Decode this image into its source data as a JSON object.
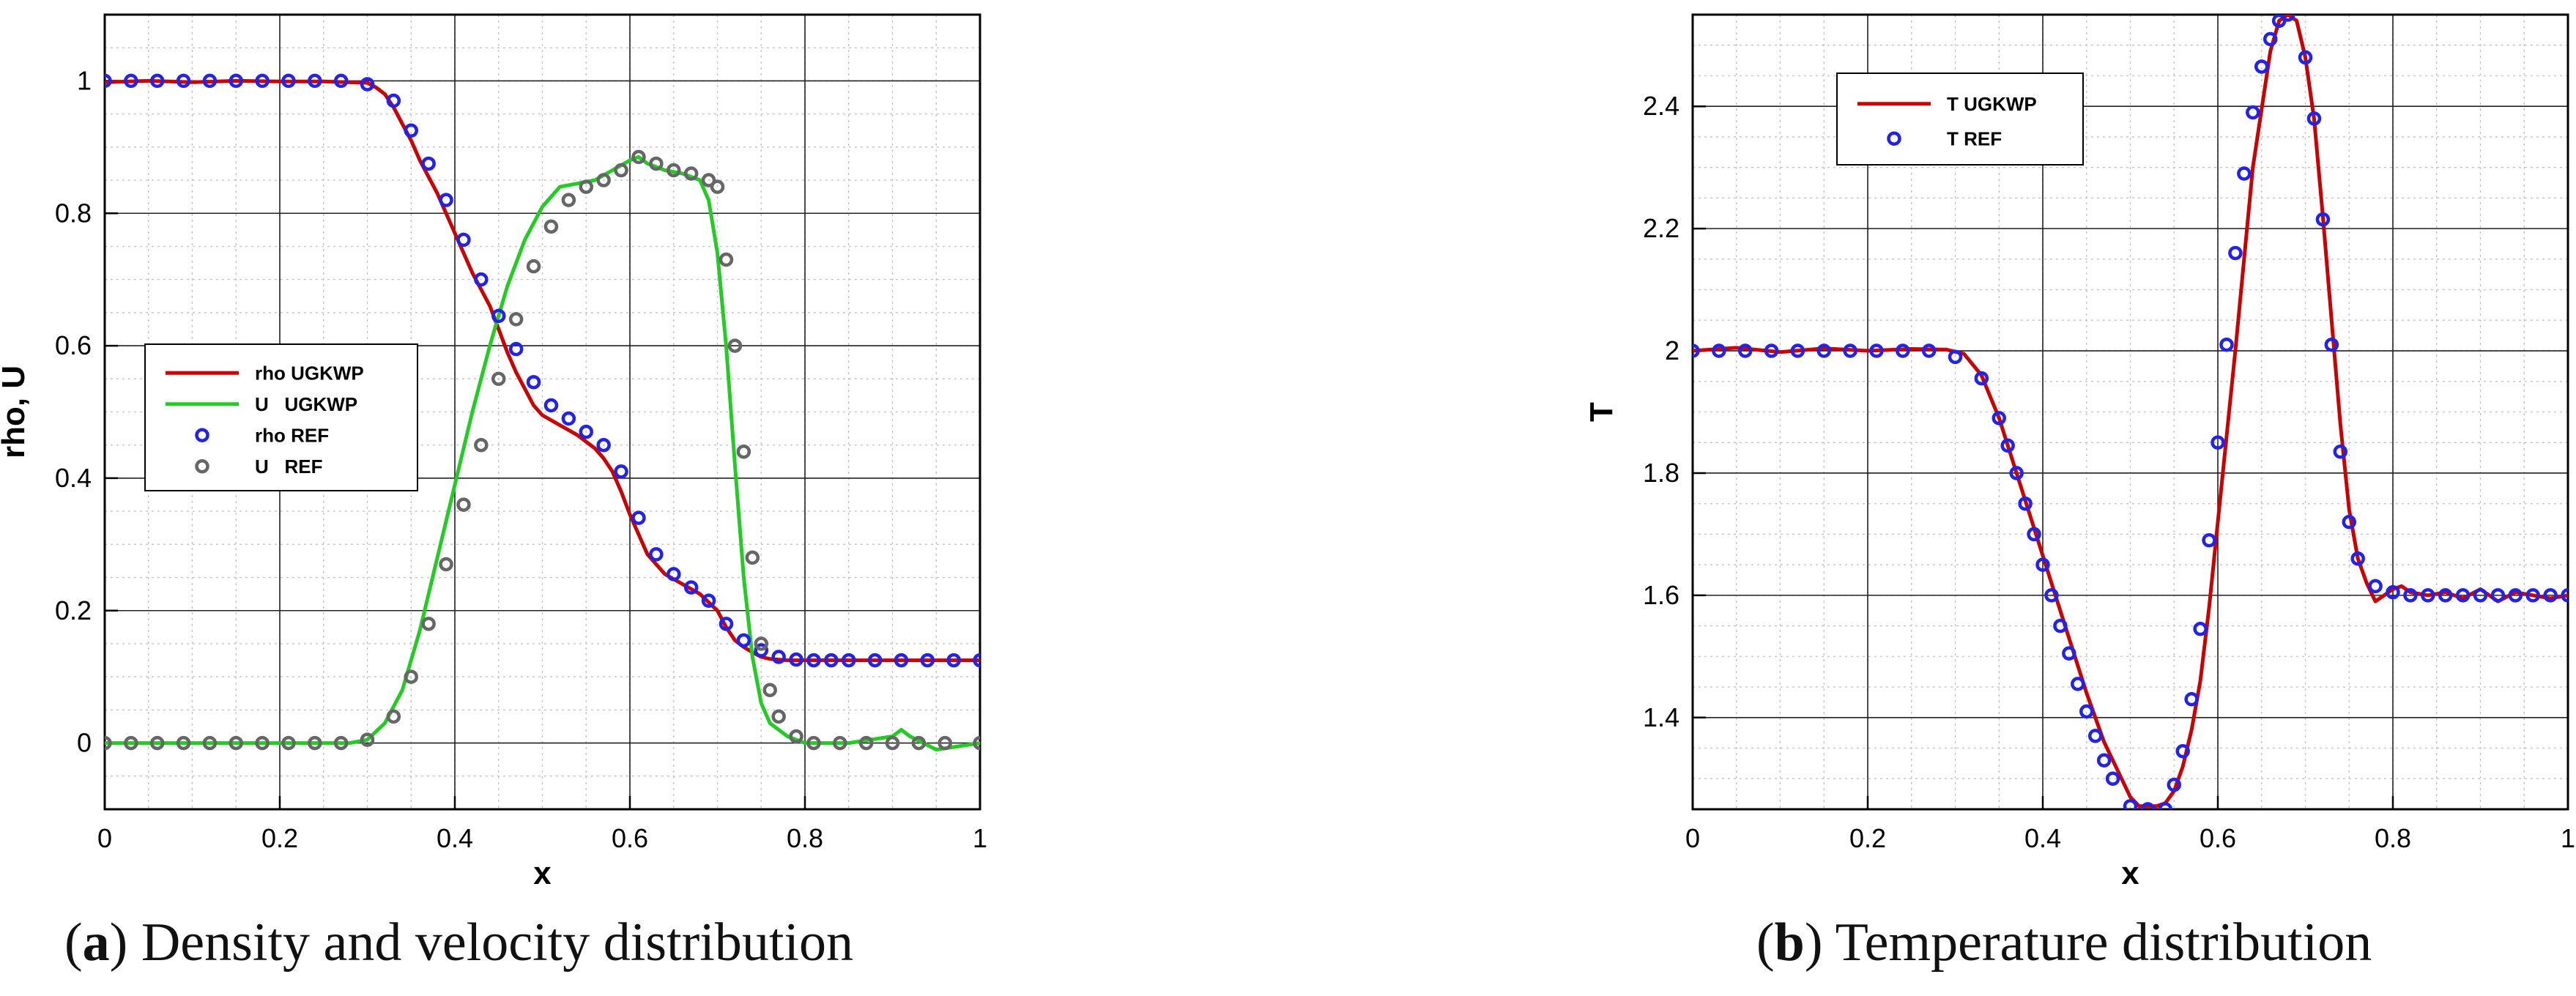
{
  "colors": {
    "rho_ugkwp": "#cc0000",
    "u_ugkwp": "#22cc22",
    "rho_ref": "#2222ee",
    "u_ref": "#666666",
    "t_ugkwp": "#cc0000",
    "t_ref": "#2222ee"
  },
  "captions": {
    "a_letter": "a",
    "a_text": " Density and velocity distribution",
    "b_letter": "b",
    "b_text": " Temperature distribution"
  },
  "chart_data": [
    {
      "type": "line",
      "id": "a",
      "xlabel": "x",
      "ylabel": "rho, U",
      "xlim": [
        0,
        1
      ],
      "ylim": [
        -0.1,
        1.1
      ],
      "xticks": [
        0,
        0.2,
        0.4,
        0.6,
        0.8,
        1
      ],
      "xtick_labels": [
        "0",
        "0.2",
        "0.4",
        "0.6",
        "0.8",
        "1"
      ],
      "yticks": [
        0,
        0.2,
        0.4,
        0.6,
        0.8,
        1
      ],
      "ytick_labels": [
        "0",
        "0.2",
        "0.4",
        "0.6",
        "0.8",
        "1"
      ],
      "grid": true,
      "legend_position": "center-left",
      "series": [
        {
          "name": "rho UGKWP",
          "style": "line",
          "color_key": "rho_ugkwp",
          "x": [
            0,
            0.05,
            0.1,
            0.15,
            0.2,
            0.25,
            0.3,
            0.31,
            0.32,
            0.33,
            0.34,
            0.35,
            0.36,
            0.38,
            0.4,
            0.42,
            0.44,
            0.45,
            0.46,
            0.47,
            0.48,
            0.49,
            0.5,
            0.52,
            0.54,
            0.56,
            0.57,
            0.58,
            0.59,
            0.6,
            0.62,
            0.64,
            0.66,
            0.68,
            0.7,
            0.71,
            0.72,
            0.73,
            0.74,
            0.75,
            0.76,
            0.78,
            0.8,
            0.9,
            1.0
          ],
          "y": [
            0.998,
            1.0,
            0.998,
            1.0,
            0.999,
            0.999,
            0.997,
            0.99,
            0.98,
            0.96,
            0.935,
            0.91,
            0.88,
            0.83,
            0.77,
            0.71,
            0.66,
            0.625,
            0.59,
            0.56,
            0.535,
            0.51,
            0.495,
            0.48,
            0.465,
            0.445,
            0.43,
            0.41,
            0.38,
            0.345,
            0.285,
            0.255,
            0.24,
            0.225,
            0.2,
            0.175,
            0.155,
            0.145,
            0.137,
            0.13,
            0.127,
            0.125,
            0.125,
            0.125,
            0.125
          ]
        },
        {
          "name": "U   UGKWP",
          "style": "line",
          "color_key": "u_ugkwp",
          "x": [
            0,
            0.1,
            0.2,
            0.28,
            0.3,
            0.32,
            0.34,
            0.36,
            0.38,
            0.4,
            0.42,
            0.44,
            0.46,
            0.48,
            0.5,
            0.52,
            0.54,
            0.56,
            0.58,
            0.6,
            0.61,
            0.62,
            0.64,
            0.66,
            0.68,
            0.69,
            0.7,
            0.71,
            0.72,
            0.73,
            0.74,
            0.75,
            0.76,
            0.78,
            0.8,
            0.85,
            0.9,
            0.91,
            0.92,
            0.95,
            1.0
          ],
          "y": [
            0.0,
            0.0,
            0.0,
            0.0,
            0.005,
            0.03,
            0.08,
            0.17,
            0.28,
            0.39,
            0.5,
            0.6,
            0.69,
            0.76,
            0.81,
            0.84,
            0.845,
            0.85,
            0.865,
            0.88,
            0.885,
            0.875,
            0.865,
            0.86,
            0.85,
            0.82,
            0.74,
            0.6,
            0.42,
            0.25,
            0.13,
            0.06,
            0.03,
            0.01,
            0.0,
            0.0,
            0.01,
            0.02,
            0.01,
            -0.01,
            0.0
          ]
        },
        {
          "name": "rho REF",
          "style": "marker",
          "color_key": "rho_ref",
          "x": [
            0,
            0.03,
            0.06,
            0.09,
            0.12,
            0.15,
            0.18,
            0.21,
            0.24,
            0.27,
            0.3,
            0.33,
            0.35,
            0.37,
            0.39,
            0.41,
            0.43,
            0.45,
            0.47,
            0.49,
            0.51,
            0.53,
            0.55,
            0.57,
            0.59,
            0.61,
            0.63,
            0.65,
            0.67,
            0.69,
            0.71,
            0.73,
            0.75,
            0.77,
            0.79,
            0.81,
            0.83,
            0.85,
            0.88,
            0.91,
            0.94,
            0.97,
            1.0
          ],
          "y": [
            1.0,
            1.0,
            1.0,
            1.0,
            1.0,
            1.0,
            1.0,
            1.0,
            1.0,
            1.0,
            0.995,
            0.97,
            0.925,
            0.875,
            0.82,
            0.76,
            0.7,
            0.645,
            0.595,
            0.545,
            0.51,
            0.49,
            0.47,
            0.45,
            0.41,
            0.34,
            0.285,
            0.255,
            0.235,
            0.215,
            0.18,
            0.155,
            0.14,
            0.13,
            0.126,
            0.125,
            0.125,
            0.125,
            0.125,
            0.125,
            0.125,
            0.125,
            0.125
          ]
        },
        {
          "name": "U   REF",
          "style": "marker",
          "color_key": "u_ref",
          "x": [
            0,
            0.03,
            0.06,
            0.09,
            0.12,
            0.15,
            0.18,
            0.21,
            0.24,
            0.27,
            0.3,
            0.33,
            0.35,
            0.37,
            0.39,
            0.41,
            0.43,
            0.45,
            0.47,
            0.49,
            0.51,
            0.53,
            0.55,
            0.57,
            0.59,
            0.61,
            0.63,
            0.65,
            0.67,
            0.69,
            0.7,
            0.71,
            0.72,
            0.73,
            0.74,
            0.75,
            0.76,
            0.77,
            0.79,
            0.81,
            0.84,
            0.87,
            0.9,
            0.93,
            0.96,
            1.0
          ],
          "y": [
            0.0,
            0.0,
            0.0,
            0.0,
            0.0,
            0.0,
            0.0,
            0.0,
            0.0,
            0.0,
            0.005,
            0.04,
            0.1,
            0.18,
            0.27,
            0.36,
            0.45,
            0.55,
            0.64,
            0.72,
            0.78,
            0.82,
            0.84,
            0.85,
            0.865,
            0.885,
            0.875,
            0.865,
            0.86,
            0.85,
            0.84,
            0.73,
            0.6,
            0.44,
            0.28,
            0.15,
            0.08,
            0.04,
            0.01,
            0.0,
            0.0,
            0.0,
            0.0,
            0.0,
            0.0,
            0.0
          ]
        }
      ]
    },
    {
      "type": "line",
      "id": "b",
      "xlabel": "x",
      "ylabel": "T",
      "xlim": [
        0,
        1
      ],
      "ylim": [
        1.25,
        2.55
      ],
      "xticks": [
        0,
        0.2,
        0.4,
        0.6,
        0.8,
        1
      ],
      "xtick_labels": [
        "0",
        "0.2",
        "0.4",
        "0.6",
        "0.8",
        "1"
      ],
      "yticks": [
        1.4,
        1.6,
        1.8,
        2.0,
        2.2,
        2.4
      ],
      "ytick_labels": [
        "1.4",
        "1.6",
        "1.8",
        "2",
        "2.2",
        "2.4"
      ],
      "grid": true,
      "legend_position": "top-left",
      "series": [
        {
          "name": "T UGKWP",
          "style": "line",
          "color_key": "t_ugkwp",
          "x": [
            0,
            0.05,
            0.1,
            0.15,
            0.2,
            0.25,
            0.29,
            0.31,
            0.33,
            0.35,
            0.37,
            0.39,
            0.41,
            0.43,
            0.45,
            0.47,
            0.49,
            0.5,
            0.51,
            0.52,
            0.53,
            0.54,
            0.55,
            0.56,
            0.57,
            0.58,
            0.59,
            0.6,
            0.62,
            0.64,
            0.66,
            0.67,
            0.68,
            0.69,
            0.7,
            0.71,
            0.72,
            0.73,
            0.74,
            0.75,
            0.76,
            0.77,
            0.78,
            0.79,
            0.8,
            0.81,
            0.82,
            0.84,
            0.86,
            0.88,
            0.9,
            0.92,
            0.94,
            0.96,
            0.98,
            1.0
          ],
          "y": [
            2.0,
            2.005,
            1.998,
            2.004,
            2.0,
            2.003,
            2.002,
            1.995,
            1.96,
            1.89,
            1.8,
            1.71,
            1.62,
            1.53,
            1.44,
            1.36,
            1.3,
            1.27,
            1.255,
            1.255,
            1.255,
            1.26,
            1.28,
            1.32,
            1.38,
            1.46,
            1.58,
            1.72,
            2.0,
            2.3,
            2.49,
            2.54,
            2.55,
            2.54,
            2.48,
            2.38,
            2.22,
            2.05,
            1.88,
            1.74,
            1.66,
            1.62,
            1.59,
            1.6,
            1.61,
            1.615,
            1.605,
            1.6,
            1.605,
            1.595,
            1.61,
            1.59,
            1.605,
            1.6,
            1.595,
            1.6
          ]
        },
        {
          "name": "T REF",
          "style": "marker",
          "color_key": "t_ref",
          "x": [
            0,
            0.03,
            0.06,
            0.09,
            0.12,
            0.15,
            0.18,
            0.21,
            0.24,
            0.27,
            0.3,
            0.33,
            0.35,
            0.36,
            0.37,
            0.38,
            0.39,
            0.4,
            0.41,
            0.42,
            0.43,
            0.44,
            0.45,
            0.46,
            0.47,
            0.48,
            0.5,
            0.52,
            0.54,
            0.55,
            0.56,
            0.57,
            0.58,
            0.59,
            0.6,
            0.61,
            0.62,
            0.63,
            0.64,
            0.65,
            0.66,
            0.67,
            0.68,
            0.7,
            0.71,
            0.72,
            0.73,
            0.74,
            0.75,
            0.76,
            0.78,
            0.8,
            0.82,
            0.84,
            0.86,
            0.88,
            0.9,
            0.92,
            0.94,
            0.96,
            0.98,
            1.0
          ],
          "y": [
            2.0,
            2.0,
            2.0,
            2.0,
            2.0,
            2.0,
            2.0,
            2.0,
            2.0,
            2.0,
            1.99,
            1.955,
            1.89,
            1.845,
            1.8,
            1.75,
            1.7,
            1.65,
            1.6,
            1.55,
            1.505,
            1.455,
            1.41,
            1.37,
            1.33,
            1.3,
            1.255,
            1.25,
            1.25,
            1.29,
            1.345,
            1.43,
            1.545,
            1.69,
            1.85,
            2.01,
            2.16,
            2.29,
            2.39,
            2.465,
            2.51,
            2.54,
            2.55,
            2.48,
            2.38,
            2.215,
            2.01,
            1.835,
            1.72,
            1.66,
            1.615,
            1.605,
            1.6,
            1.6,
            1.6,
            1.6,
            1.6,
            1.6,
            1.6,
            1.6,
            1.6,
            1.6
          ]
        }
      ]
    }
  ]
}
